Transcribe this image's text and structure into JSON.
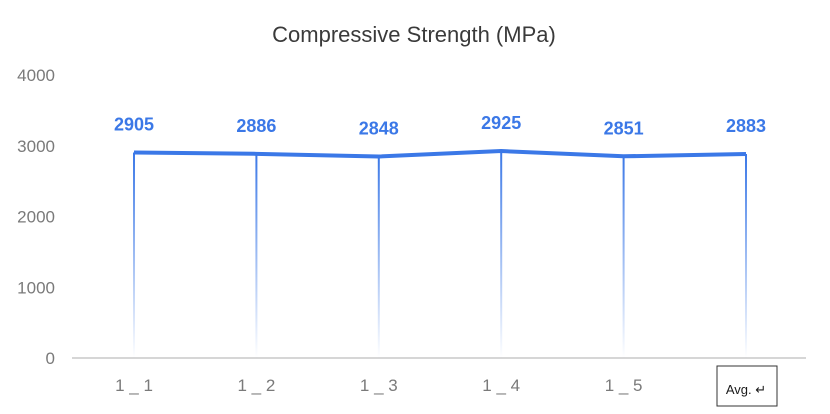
{
  "chart_data": {
    "type": "line",
    "title": "Compressive Strength (MPa)",
    "categories": [
      "1 _ 1",
      "1 _ 2",
      "1 _ 3",
      "1 _ 4",
      "1 _ 5",
      "Avg. ↵"
    ],
    "series": [
      {
        "values": [
          2905,
          2886,
          2848,
          2925,
          2851,
          2883
        ]
      }
    ],
    "ylim": [
      0,
      4000
    ],
    "yticks": [
      "0",
      "1000",
      "2000",
      "3000",
      "4000"
    ],
    "grid": false,
    "drop_lines": true,
    "colors": {
      "series": "#3b78e7",
      "axis": "#c8c8c8"
    }
  }
}
